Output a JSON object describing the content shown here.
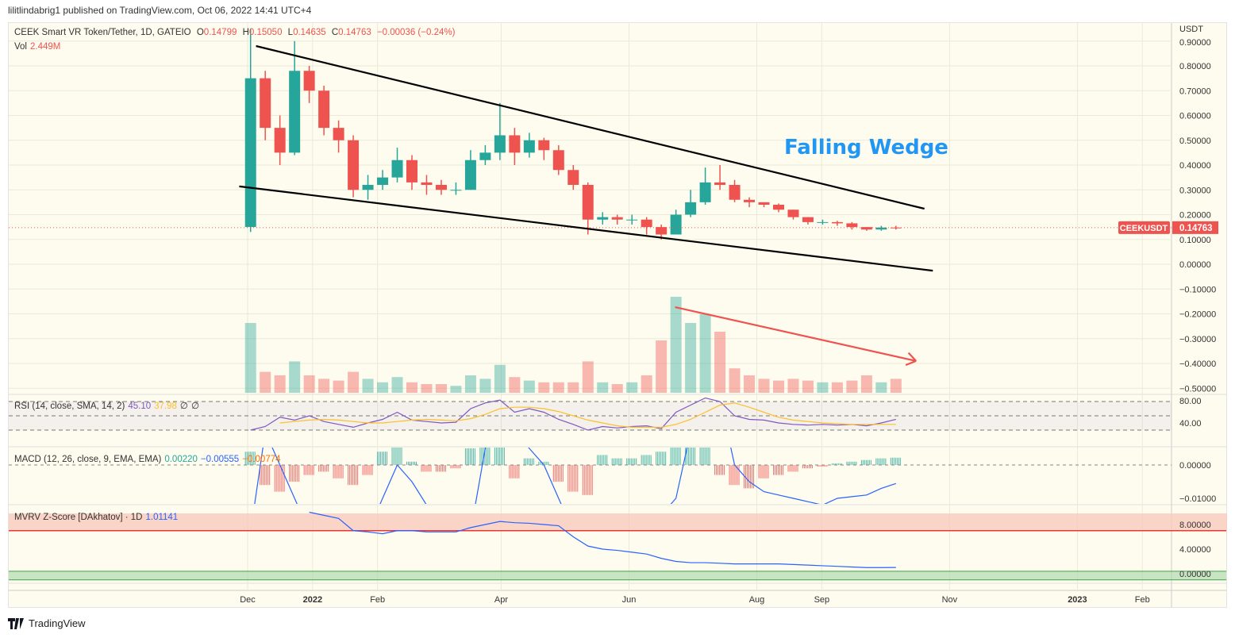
{
  "header": {
    "published": "lilitlindabrig1 published on TradingView.com, Oct 06, 2022 14:41 UTC+4"
  },
  "legend": {
    "symbol": "CEEK Smart VR Token/Tether, 1D, GATEIO",
    "o_label": "O",
    "o": "0.14799",
    "h_label": "H",
    "h": "0.15050",
    "l_label": "L",
    "l": "0.14635",
    "c_label": "C",
    "c": "0.14763",
    "change": "−0.00036 (−0.24%)",
    "vol_label": "Vol",
    "vol": "2.449M"
  },
  "rsi_legend": {
    "title": "RSI (14, close, SMA, 14, 2)",
    "rsi": "45.10",
    "sma": "37.98",
    "v3": "∅",
    "v4": "∅"
  },
  "macd_legend": {
    "title": "MACD (12, 26, close, 9, EMA, EMA)",
    "hist": "0.00220",
    "macd": "−0.00555",
    "signal": "−0.00774"
  },
  "mvrv_legend": {
    "title": "MVRV Z-Score [DAkhatov] · 1D",
    "value": "1.01141"
  },
  "annotation": {
    "text": "Falling Wedge"
  },
  "price_label": {
    "symbol": "CEEKUSDT",
    "price": "0.14763"
  },
  "footer": {
    "brand": "TradingView"
  },
  "colors": {
    "up": "#26a69a",
    "down": "#ef5350",
    "rsi": "#7e57c2",
    "rsi_sma": "#fbc02d",
    "macd": "#2962ff",
    "signal": "#ff6d00",
    "wedge_text": "#2196f3",
    "arrow": "#ef5350"
  },
  "chart_data": {
    "type": "candlestick",
    "currency": "USDT",
    "price_ticks": [
      "0.90000",
      "0.80000",
      "0.70000",
      "0.60000",
      "0.50000",
      "0.40000",
      "0.30000",
      "0.20000",
      "0.10000",
      "0.00000",
      "−0.10000",
      "−0.20000",
      "−0.30000",
      "−0.40000",
      "−0.50000"
    ],
    "price_tick_values": [
      0.9,
      0.8,
      0.7,
      0.6,
      0.5,
      0.4,
      0.3,
      0.2,
      0.1,
      0,
      -0.1,
      -0.2,
      -0.3,
      -0.4,
      -0.5
    ],
    "time_ticks": [
      "Dec",
      "2022",
      "Feb",
      "Apr",
      "Jun",
      "Aug",
      "Sep",
      "Nov",
      "2023",
      "Feb"
    ],
    "time_tick_dates": [
      "2021-12-01",
      "2022-01-01",
      "2022-02-01",
      "2022-04-01",
      "2022-06-01",
      "2022-08-01",
      "2022-09-01",
      "2022-11-01",
      "2023-01-01",
      "2023-02-01"
    ],
    "weekly_candles": [
      [
        "2021-11-29",
        0.15,
        0.95,
        0.13,
        0.75,
        40
      ],
      [
        "2021-12-06",
        0.75,
        0.78,
        0.5,
        0.55,
        12
      ],
      [
        "2021-12-13",
        0.55,
        0.6,
        0.4,
        0.45,
        10
      ],
      [
        "2021-12-20",
        0.45,
        0.9,
        0.44,
        0.78,
        18
      ],
      [
        "2021-12-27",
        0.78,
        0.8,
        0.65,
        0.7,
        10
      ],
      [
        "2022-01-03",
        0.7,
        0.72,
        0.52,
        0.55,
        8
      ],
      [
        "2022-01-10",
        0.55,
        0.58,
        0.45,
        0.5,
        7
      ],
      [
        "2022-01-17",
        0.5,
        0.52,
        0.27,
        0.3,
        12
      ],
      [
        "2022-01-24",
        0.3,
        0.36,
        0.26,
        0.32,
        8
      ],
      [
        "2022-01-31",
        0.32,
        0.38,
        0.3,
        0.35,
        6
      ],
      [
        "2022-02-07",
        0.35,
        0.47,
        0.33,
        0.42,
        9
      ],
      [
        "2022-02-14",
        0.42,
        0.44,
        0.3,
        0.33,
        6
      ],
      [
        "2022-02-21",
        0.33,
        0.36,
        0.28,
        0.32,
        5
      ],
      [
        "2022-02-28",
        0.32,
        0.34,
        0.28,
        0.3,
        5
      ],
      [
        "2022-03-07",
        0.3,
        0.33,
        0.28,
        0.3,
        4
      ],
      [
        "2022-03-14",
        0.3,
        0.46,
        0.3,
        0.42,
        10
      ],
      [
        "2022-03-21",
        0.42,
        0.48,
        0.4,
        0.45,
        8
      ],
      [
        "2022-03-28",
        0.45,
        0.65,
        0.42,
        0.52,
        16
      ],
      [
        "2022-04-04",
        0.52,
        0.55,
        0.4,
        0.45,
        9
      ],
      [
        "2022-04-11",
        0.45,
        0.53,
        0.43,
        0.5,
        7
      ],
      [
        "2022-04-18",
        0.5,
        0.51,
        0.42,
        0.46,
        6
      ],
      [
        "2022-04-25",
        0.46,
        0.48,
        0.36,
        0.38,
        6
      ],
      [
        "2022-05-02",
        0.38,
        0.4,
        0.3,
        0.32,
        6
      ],
      [
        "2022-05-09",
        0.32,
        0.33,
        0.12,
        0.18,
        18
      ],
      [
        "2022-05-16",
        0.18,
        0.21,
        0.16,
        0.19,
        6
      ],
      [
        "2022-05-23",
        0.19,
        0.2,
        0.16,
        0.18,
        5
      ],
      [
        "2022-05-30",
        0.18,
        0.2,
        0.16,
        0.18,
        6
      ],
      [
        "2022-06-06",
        0.18,
        0.19,
        0.12,
        0.15,
        10
      ],
      [
        "2022-06-13",
        0.15,
        0.16,
        0.1,
        0.12,
        30
      ],
      [
        "2022-06-20",
        0.12,
        0.22,
        0.12,
        0.2,
        55
      ],
      [
        "2022-06-27",
        0.2,
        0.3,
        0.19,
        0.25,
        40
      ],
      [
        "2022-07-04",
        0.25,
        0.39,
        0.24,
        0.33,
        45
      ],
      [
        "2022-07-11",
        0.33,
        0.4,
        0.3,
        0.32,
        35
      ],
      [
        "2022-07-18",
        0.32,
        0.34,
        0.25,
        0.26,
        14
      ],
      [
        "2022-07-25",
        0.26,
        0.27,
        0.23,
        0.25,
        10
      ],
      [
        "2022-08-01",
        0.25,
        0.25,
        0.23,
        0.24,
        8
      ],
      [
        "2022-08-08",
        0.24,
        0.245,
        0.21,
        0.22,
        7
      ],
      [
        "2022-08-15",
        0.22,
        0.22,
        0.18,
        0.19,
        8
      ],
      [
        "2022-08-22",
        0.19,
        0.19,
        0.16,
        0.17,
        7
      ],
      [
        "2022-08-29",
        0.17,
        0.18,
        0.16,
        0.17,
        6
      ],
      [
        "2022-09-05",
        0.17,
        0.175,
        0.155,
        0.165,
        6
      ],
      [
        "2022-09-12",
        0.165,
        0.17,
        0.14,
        0.15,
        7
      ],
      [
        "2022-09-19",
        0.15,
        0.15,
        0.135,
        0.14,
        10
      ],
      [
        "2022-09-26",
        0.14,
        0.155,
        0.135,
        0.148,
        6
      ],
      [
        "2022-10-03",
        0.148,
        0.155,
        0.14,
        0.14763,
        8
      ]
    ],
    "candle_fields": [
      "week",
      "open",
      "high",
      "low",
      "close",
      "volume_relative"
    ],
    "trendlines": [
      {
        "color": "#000000",
        "from": [
          "2021-12-05",
          0.88
        ],
        "to": [
          "2022-10-20",
          0.224
        ]
      },
      {
        "color": "#000000",
        "from": [
          "2021-11-27",
          0.314
        ],
        "to": [
          "2022-10-24",
          -0.026
        ]
      },
      {
        "color": "#ef5350",
        "arrow": true,
        "from": [
          "2022-06-23",
          -0.173
        ],
        "to": [
          "2022-10-16",
          -0.39
        ]
      }
    ],
    "rsi": {
      "ticks": [
        "80.00",
        "40.00"
      ],
      "tick_values": [
        80,
        40
      ],
      "bands": [
        70,
        50,
        30
      ],
      "values": [
        30,
        35,
        48,
        44,
        50,
        42,
        38,
        34,
        40,
        45,
        55,
        44,
        42,
        40,
        41,
        60,
        68,
        72,
        55,
        60,
        55,
        45,
        38,
        30,
        35,
        33,
        35,
        36,
        32,
        55,
        65,
        75,
        70,
        50,
        45,
        44,
        40,
        38,
        37,
        38,
        37,
        38,
        36,
        40,
        45.1
      ],
      "sma": [
        null,
        null,
        40,
        42,
        44,
        45,
        44,
        42,
        40,
        40,
        42,
        44,
        45,
        44,
        43,
        46,
        52,
        60,
        62,
        62,
        60,
        56,
        50,
        44,
        40,
        36,
        34,
        34,
        34,
        38,
        45,
        55,
        65,
        68,
        62,
        55,
        48,
        44,
        42,
        40,
        39,
        38,
        38,
        38,
        37.98
      ]
    },
    "macd": {
      "ticks": [
        "0.00000",
        "−0.01000"
      ],
      "tick_values": [
        0,
        -0.01
      ],
      "hist": [
        0.004,
        -0.006,
        -0.008,
        -0.005,
        -0.003,
        -0.002,
        -0.004,
        -0.006,
        -0.003,
        0.004,
        0.006,
        0.001,
        -0.002,
        -0.002,
        -0.001,
        0.005,
        0.006,
        0.006,
        -0.004,
        0.002,
        0.001,
        -0.005,
        -0.008,
        -0.009,
        0.003,
        0.002,
        0.002,
        0.003,
        0.004,
        0.006,
        0.008,
        0.007,
        -0.003,
        -0.006,
        -0.007,
        -0.004,
        -0.003,
        -0.002,
        -0.001,
        -0.0005,
        0.0005,
        0.001,
        0.0015,
        0.002,
        0.0022
      ],
      "macd_line": [
        -0.02,
        0.01,
        0.0,
        -0.01,
        -0.02,
        -0.03,
        -0.02,
        -0.03,
        -0.02,
        -0.01,
        0.0,
        -0.005,
        -0.012,
        -0.02,
        -0.03,
        -0.02,
        0.005,
        0.02,
        0.01,
        0.005,
        0.0,
        -0.01,
        -0.02,
        -0.04,
        -0.03,
        -0.025,
        -0.02,
        -0.02,
        -0.015,
        -0.01,
        0.01,
        0.03,
        0.02,
        0.0,
        -0.005,
        -0.008,
        -0.009,
        -0.01,
        -0.011,
        -0.012,
        -0.01,
        -0.0095,
        -0.009,
        -0.007,
        -0.00555
      ]
    },
    "mvrv": {
      "ticks": [
        "8.00000",
        "4.00000",
        "0.00000"
      ],
      "tick_values": [
        8,
        4,
        0
      ],
      "upper_zone": [
        7,
        10
      ],
      "lower_zone": [
        -1,
        0.4
      ],
      "values": [
        null,
        null,
        null,
        null,
        10,
        9.5,
        9,
        7,
        6.8,
        6.5,
        7,
        7,
        6.8,
        6.8,
        6.8,
        7.5,
        8,
        8.5,
        8.3,
        8.2,
        8,
        7.8,
        6,
        4.5,
        4,
        3.8,
        3.5,
        3.2,
        2.5,
        2,
        1.8,
        1.8,
        1.7,
        1.6,
        1.6,
        1.6,
        1.6,
        1.5,
        1.4,
        1.3,
        1.2,
        1.1,
        1.0,
        1.0,
        1.01141
      ]
    }
  }
}
